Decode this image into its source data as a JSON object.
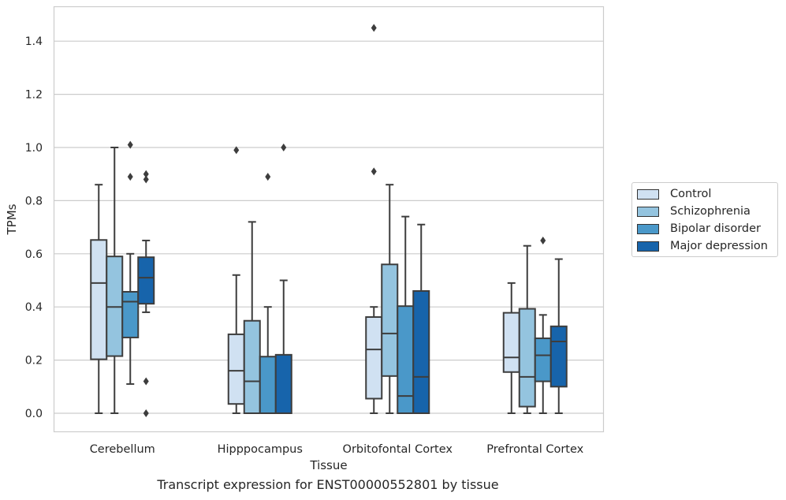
{
  "caption": "Transcript expression for ENST00000552801 by tissue",
  "chart_data": {
    "type": "box",
    "title": "",
    "xlabel": "Tissue",
    "ylabel": "TPMs",
    "ylim": [
      -0.07,
      1.53
    ],
    "yticks": [
      0.0,
      0.2,
      0.4,
      0.6,
      0.8,
      1.0,
      1.2,
      1.4
    ],
    "categories": [
      "Cerebellum",
      "Hipppocampus",
      "Orbitofontal Cortex",
      "Prefrontal Cortex"
    ],
    "grid": "horizontal",
    "legend_position": "right",
    "series": [
      {
        "name": "Control",
        "color": "#d0e1f2",
        "boxes": [
          {
            "whislo": 0.0,
            "q1": 0.203,
            "med": 0.49,
            "q3": 0.652,
            "whishi": 0.86,
            "fliers": []
          },
          {
            "whislo": 0.0,
            "q1": 0.035,
            "med": 0.16,
            "q3": 0.297,
            "whishi": 0.52,
            "fliers": [
              0.99
            ]
          },
          {
            "whislo": 0.0,
            "q1": 0.055,
            "med": 0.24,
            "q3": 0.362,
            "whishi": 0.4,
            "fliers": [
              0.91,
              1.45
            ]
          },
          {
            "whislo": 0.0,
            "q1": 0.155,
            "med": 0.21,
            "q3": 0.378,
            "whishi": 0.49,
            "fliers": []
          }
        ]
      },
      {
        "name": "Schizophrenia",
        "color": "#94c4df",
        "boxes": [
          {
            "whislo": 0.0,
            "q1": 0.215,
            "med": 0.4,
            "q3": 0.59,
            "whishi": 1.0,
            "fliers": []
          },
          {
            "whislo": 0.0,
            "q1": 0.0,
            "med": 0.12,
            "q3": 0.348,
            "whishi": 0.72,
            "fliers": []
          },
          {
            "whislo": 0.0,
            "q1": 0.14,
            "med": 0.3,
            "q3": 0.56,
            "whishi": 0.86,
            "fliers": []
          },
          {
            "whislo": 0.0,
            "q1": 0.025,
            "med": 0.137,
            "q3": 0.393,
            "whishi": 0.63,
            "fliers": []
          }
        ]
      },
      {
        "name": "Bipolar disorder",
        "color": "#4a98c9",
        "boxes": [
          {
            "whislo": 0.11,
            "q1": 0.285,
            "med": 0.42,
            "q3": 0.457,
            "whishi": 0.6,
            "fliers": [
              0.89,
              1.01
            ]
          },
          {
            "whislo": 0.0,
            "q1": 0.0,
            "med": 0.0,
            "q3": 0.213,
            "whishi": 0.4,
            "fliers": [
              0.89
            ]
          },
          {
            "whislo": 0.0,
            "q1": 0.0,
            "med": 0.065,
            "q3": 0.403,
            "whishi": 0.74,
            "fliers": []
          },
          {
            "whislo": 0.0,
            "q1": 0.12,
            "med": 0.218,
            "q3": 0.282,
            "whishi": 0.37,
            "fliers": [
              0.65
            ]
          }
        ]
      },
      {
        "name": "Major depression",
        "color": "#1764ab",
        "boxes": [
          {
            "whislo": 0.38,
            "q1": 0.412,
            "med": 0.51,
            "q3": 0.587,
            "whishi": 0.65,
            "fliers": [
              0.0,
              0.12,
              0.88,
              0.9
            ]
          },
          {
            "whislo": 0.0,
            "q1": 0.0,
            "med": 0.0,
            "q3": 0.22,
            "whishi": 0.5,
            "fliers": [
              1.0
            ]
          },
          {
            "whislo": 0.0,
            "q1": 0.0,
            "med": 0.137,
            "q3": 0.46,
            "whishi": 0.71,
            "fliers": []
          },
          {
            "whislo": 0.0,
            "q1": 0.1,
            "med": 0.27,
            "q3": 0.327,
            "whishi": 0.58,
            "fliers": []
          }
        ]
      }
    ]
  }
}
